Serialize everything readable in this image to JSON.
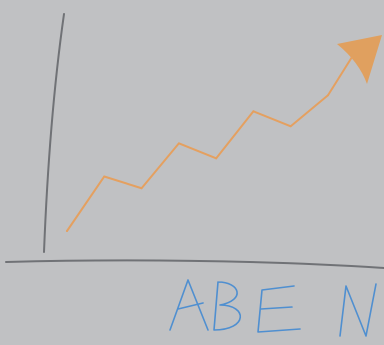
{
  "chart_data": {
    "type": "line",
    "title": "",
    "xlabel": "",
    "ylabel": "",
    "grid": false,
    "legend": "none",
    "x": [
      0,
      1,
      2,
      3,
      4,
      5,
      6,
      7
    ],
    "series": [
      {
        "values": [
          0.0,
          0.51,
          0.4,
          0.82,
          0.68,
          1.12,
          0.98,
          1.27
        ]
      }
    ],
    "xlim": [
      0,
      7
    ],
    "ylim": [
      0,
      1.6
    ],
    "arrow_head": true
  },
  "caption": {
    "text": "ABEN",
    "handwritten": true
  },
  "colors": {
    "background": "#c0c1c3",
    "axis": "#707276",
    "line": "#e4a060",
    "arrow": "#e0a05f",
    "caption": "#4f8fd0"
  },
  "icons": {
    "arrow": "arrow-head-icon"
  }
}
